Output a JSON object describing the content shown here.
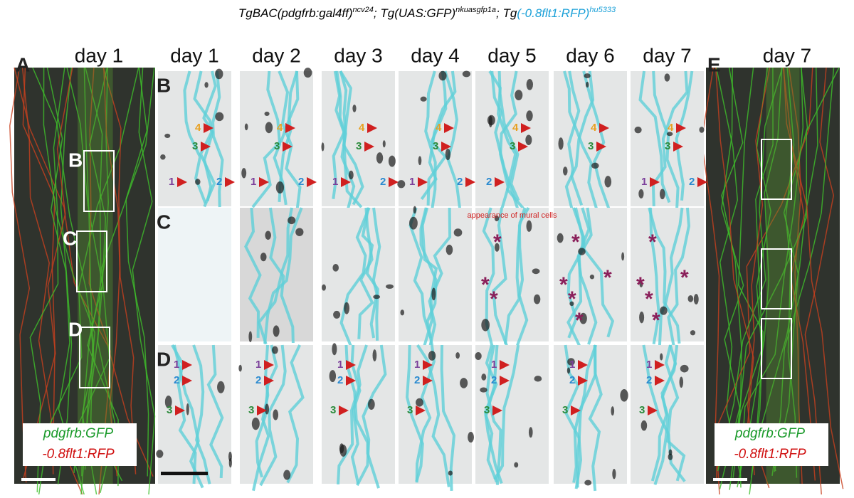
{
  "title": {
    "t1": "TgBAC(pdgfrb:gal4ff)",
    "s1": "ncv24",
    "t2": "; Tg(UAS:GFP)",
    "s2": "nkuasgfp1a",
    "t3": "; Tg",
    "t4": "(-0.8flt1:RFP)",
    "s4": "hu5333"
  },
  "panel_a": {
    "label": "A",
    "day": "day 1",
    "boxes": [
      "B",
      "C",
      "D"
    ],
    "legend": [
      "pdgfrb:GFP",
      "-0.8flt1:RFP"
    ]
  },
  "columns": [
    "day 1",
    "day 2",
    "day 3",
    "day 4",
    "day 5",
    "day 6",
    "day 7"
  ],
  "rows": [
    {
      "label": "B",
      "cells": [
        [
          "4",
          "3",
          "1",
          "2"
        ],
        [
          "4",
          "3",
          "1",
          "2"
        ],
        [
          "4",
          "3",
          "1",
          "2"
        ],
        [
          "4",
          "3",
          "1",
          "2"
        ],
        [
          "4",
          "3",
          "2"
        ],
        [
          "4",
          "3"
        ],
        [
          "4",
          "3",
          "1",
          "2"
        ]
      ]
    },
    {
      "label": "C",
      "annotation": "appearance of mural cells",
      "cells": [
        [],
        [],
        [],
        [],
        [
          "*",
          "*",
          "*"
        ],
        [
          "*",
          "*",
          "*",
          "*",
          "*"
        ],
        [
          "*",
          "*",
          "*",
          "*",
          "*"
        ]
      ]
    },
    {
      "label": "D",
      "cells": [
        [
          "1",
          "2",
          "3"
        ],
        [
          "1",
          "2",
          "3"
        ],
        [
          "1",
          "2",
          "3"
        ],
        [
          "1",
          "2",
          "3"
        ],
        [
          "1",
          "2",
          "3"
        ],
        [
          "1",
          "2",
          "3"
        ],
        [
          "1",
          "2",
          "3"
        ]
      ]
    }
  ],
  "panel_e": {
    "label": "E",
    "day": "day 7",
    "legend": [
      "pdgfrb:GFP",
      "-0.8flt1:RFP"
    ]
  }
}
